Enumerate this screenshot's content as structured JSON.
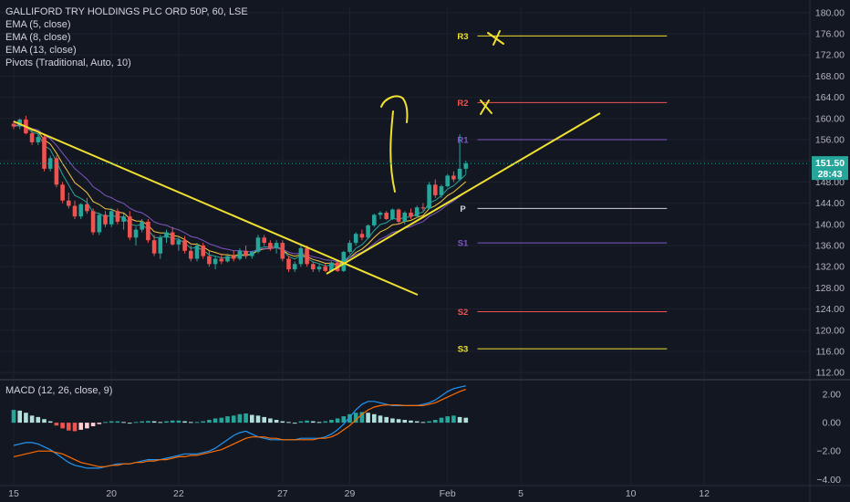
{
  "title": "GALLIFORD TRY HOLDINGS PLC ORD 50P, 60, LSE",
  "indicators": [
    "EMA (5, close)",
    "EMA (8, close)",
    "EMA (13, close)",
    "Pivots (Traditional, Auto, 10)"
  ],
  "colors": {
    "background": "#131722",
    "grid": "#1e222d",
    "up": "#26a69a",
    "down": "#ef5350",
    "ema5": "#26a69a",
    "ema8": "#f5c842",
    "ema13": "#7e57c2",
    "trendline": "#f0e130",
    "annotation": "#f0e130",
    "last_price_line": "#26a69a",
    "macd_line": "#2196f3",
    "signal_line": "#ff6d00"
  },
  "chart_data": [
    {
      "type": "candlestick",
      "name": "price",
      "y_axis": {
        "ticks": [
          112.0,
          116.0,
          120.0,
          124.0,
          128.0,
          132.0,
          136.0,
          140.0,
          144.0,
          148.0,
          152.0,
          156.0,
          160.0,
          164.0,
          168.0,
          172.0,
          176.0,
          180.0
        ],
        "ylim": [
          111.0,
          181.0
        ],
        "side": "right"
      },
      "x_axis": {
        "labels": [
          "15",
          "20",
          "22",
          "27",
          "29",
          "Feb",
          "5",
          "10",
          "12"
        ],
        "label_positions_index": [
          1,
          17,
          28,
          45,
          56,
          72,
          84,
          102,
          114
        ]
      },
      "last_price": {
        "value": "151.50",
        "countdown": "28:43"
      },
      "candles": [
        [
          159,
          159.5,
          158,
          158.5
        ],
        [
          158.5,
          160,
          158,
          159.8
        ],
        [
          159.8,
          160.5,
          157,
          157.2
        ],
        [
          157.2,
          158,
          155,
          155.5
        ],
        [
          155.5,
          157,
          155,
          156.5
        ],
        [
          156.5,
          157,
          150,
          150.5
        ],
        [
          150.5,
          153,
          150,
          152.5
        ],
        [
          152.5,
          153,
          147,
          147.5
        ],
        [
          147.5,
          148,
          144,
          144.5
        ],
        [
          144.5,
          146,
          143,
          143.5
        ],
        [
          143.5,
          144.5,
          141,
          141.5
        ],
        [
          141.5,
          144,
          141,
          143.8
        ],
        [
          143.8,
          145,
          142,
          142.5
        ],
        [
          142.5,
          143,
          138,
          138.5
        ],
        [
          138.5,
          142,
          138,
          141.8
        ],
        [
          141.8,
          142.5,
          139.5,
          140
        ],
        [
          140,
          143,
          139.5,
          142.5
        ],
        [
          142.5,
          143,
          140,
          140.5
        ],
        [
          140.5,
          142,
          139,
          141.5
        ],
        [
          141.5,
          142.5,
          137,
          137.5
        ],
        [
          137.5,
          139.5,
          136,
          139
        ],
        [
          139,
          141,
          138.5,
          140.5
        ],
        [
          140.5,
          141,
          136.5,
          137
        ],
        [
          137,
          138,
          134,
          134.5
        ],
        [
          134.5,
          138,
          133.5,
          137.5
        ],
        [
          137.5,
          139,
          136.5,
          138.5
        ],
        [
          138.5,
          139.5,
          136,
          136.2
        ],
        [
          136.2,
          137.5,
          135,
          137
        ],
        [
          137,
          137.8,
          134.5,
          135
        ],
        [
          135,
          136,
          133,
          133.5
        ],
        [
          133.5,
          136.5,
          133,
          136
        ],
        [
          136,
          136.5,
          133.5,
          134
        ],
        [
          134,
          135,
          132,
          132.5
        ],
        [
          132.5,
          134,
          131.5,
          133.5
        ],
        [
          133.5,
          134.5,
          132.5,
          133
        ],
        [
          133,
          134.5,
          132.8,
          134
        ],
        [
          134,
          135,
          133,
          133.5
        ],
        [
          133.5,
          135.5,
          133.2,
          135
        ],
        [
          135,
          136,
          133.5,
          134
        ],
        [
          134,
          135,
          133.5,
          134.8
        ],
        [
          134.8,
          138,
          134.5,
          137.5
        ],
        [
          137.5,
          138,
          136,
          136.5
        ],
        [
          136.5,
          137,
          135,
          135.5
        ],
        [
          135.5,
          137,
          134.5,
          136.5
        ],
        [
          136.5,
          137,
          133,
          133.5
        ],
        [
          133.5,
          134,
          131,
          131.5
        ],
        [
          131.5,
          133,
          131,
          132.5
        ],
        [
          132.5,
          136,
          132,
          135.5
        ],
        [
          135.5,
          136,
          132,
          132.5
        ],
        [
          132.5,
          133,
          131,
          131.5
        ],
        [
          131.5,
          132.5,
          131,
          132
        ],
        [
          132,
          132.5,
          131,
          131.2
        ],
        [
          131.2,
          133,
          131,
          132.8
        ],
        [
          132.8,
          133,
          131,
          131.2
        ],
        [
          131.2,
          135,
          131,
          134.8
        ],
        [
          134.8,
          137,
          134.5,
          136.5
        ],
        [
          136.5,
          138.5,
          136,
          138.2
        ],
        [
          138.2,
          139,
          137,
          137.5
        ],
        [
          137.5,
          140,
          137.2,
          139.8
        ],
        [
          139.8,
          142,
          139.5,
          141.8
        ],
        [
          141.8,
          142.5,
          141,
          142.2
        ],
        [
          142.2,
          142.5,
          140.8,
          141
        ],
        [
          141,
          143,
          140.8,
          142.8
        ],
        [
          142.8,
          143,
          140,
          140.5
        ],
        [
          140.5,
          142.5,
          140,
          142.2
        ],
        [
          142.2,
          143,
          141,
          141.5
        ],
        [
          141.5,
          143.5,
          141.2,
          143.2
        ],
        [
          143.2,
          144,
          142.5,
          143
        ],
        [
          143,
          148,
          142.8,
          147.5
        ],
        [
          147.5,
          148.5,
          145,
          145.5
        ],
        [
          145.5,
          147.5,
          145,
          147.2
        ],
        [
          147.2,
          149.5,
          147,
          149.2
        ],
        [
          149.2,
          150,
          148,
          148.5
        ],
        [
          148.5,
          157,
          148.2,
          150.5
        ],
        [
          150.5,
          152,
          149.5,
          151.5
        ]
      ],
      "candle_x_index": [
        1,
        2,
        3,
        4,
        5,
        6,
        7,
        8,
        9,
        10,
        11,
        12,
        13,
        14,
        15,
        16,
        17,
        18,
        19,
        20,
        21,
        22,
        23,
        24,
        25,
        26,
        27,
        28,
        29,
        30,
        31,
        32,
        33,
        34,
        35,
        36,
        37,
        38,
        39,
        40,
        41,
        42,
        43,
        44,
        45,
        46,
        47,
        48,
        49,
        50,
        51,
        52,
        53,
        54,
        55,
        56,
        57,
        58,
        59,
        60,
        61,
        62,
        63,
        64,
        65,
        66,
        67,
        68,
        69,
        70,
        71,
        72,
        73,
        74,
        75
      ],
      "pivots": [
        {
          "label": "R3",
          "value": 175.6,
          "color": "#f0e130"
        },
        {
          "label": "R2",
          "value": 163.0,
          "color": "#ef5350"
        },
        {
          "label": "R1",
          "value": 156.0,
          "color": "#7e57c2"
        },
        {
          "label": "P",
          "value": 143.0,
          "color": "#d1d4dc"
        },
        {
          "label": "S1",
          "value": 136.5,
          "color": "#7e57c2"
        },
        {
          "label": "S2",
          "value": 123.5,
          "color": "#ef5350"
        },
        {
          "label": "S3",
          "value": 116.5,
          "color": "#f0e130"
        }
      ],
      "pivot_x_index": [
        56,
        90
      ]
    },
    {
      "type": "macd",
      "name": "MACD (12, 26, close, 9)",
      "y_axis": {
        "ticks": [
          2.0,
          0.0,
          -2.0,
          -4.0
        ],
        "tick_labels": [
          "2.00",
          "0.00",
          "−2.00",
          "−4.00"
        ],
        "ylim": [
          -4.3,
          2.9
        ]
      },
      "histogram": [
        0.9,
        0.85,
        0.7,
        0.5,
        0.4,
        0.25,
        0.1,
        -0.2,
        -0.4,
        -0.55,
        -0.6,
        -0.5,
        -0.4,
        -0.25,
        -0.1,
        0.05,
        0.1,
        0.1,
        0.05,
        0,
        0.05,
        0.1,
        0.12,
        0.1,
        0.05,
        0.1,
        0.15,
        0.15,
        0.1,
        0.05,
        0.05,
        0.1,
        0.2,
        0.3,
        0.35,
        0.45,
        0.5,
        0.6,
        0.65,
        0.55,
        0.5,
        0.4,
        0.3,
        0.2,
        0.1,
        0.05,
        0,
        0.1,
        0.15,
        0.1,
        0.05,
        0.1,
        0.2,
        0.3,
        0.45,
        0.6,
        0.7,
        0.75,
        0.7,
        0.6,
        0.5,
        0.4,
        0.3,
        0.25,
        0.2,
        0.15,
        0.1,
        0.05,
        0.1,
        0.2,
        0.35,
        0.45,
        0.5,
        0.4,
        0.35
      ],
      "macd_line": [
        -1.6,
        -1.5,
        -1.4,
        -1.4,
        -1.5,
        -1.7,
        -1.9,
        -2.2,
        -2.5,
        -2.8,
        -3.0,
        -3.1,
        -3.2,
        -3.2,
        -3.2,
        -3.1,
        -3.0,
        -2.9,
        -2.9,
        -2.9,
        -2.8,
        -2.7,
        -2.6,
        -2.6,
        -2.6,
        -2.5,
        -2.4,
        -2.3,
        -2.2,
        -2.2,
        -2.2,
        -2.1,
        -2.0,
        -1.8,
        -1.5,
        -1.2,
        -0.9,
        -0.7,
        -0.6,
        -0.8,
        -1.0,
        -1.1,
        -1.2,
        -1.2,
        -1.2,
        -1.2,
        -1.2,
        -1.1,
        -1.1,
        -1.1,
        -1.1,
        -1.0,
        -0.8,
        -0.5,
        -0.1,
        0.4,
        0.9,
        1.3,
        1.5,
        1.5,
        1.4,
        1.3,
        1.2,
        1.2,
        1.2,
        1.2,
        1.2,
        1.3,
        1.4,
        1.6,
        1.9,
        2.2,
        2.4,
        2.5,
        2.6
      ],
      "signal_line": [
        -2.4,
        -2.3,
        -2.2,
        -2.1,
        -2.0,
        -2.0,
        -2.0,
        -2.1,
        -2.2,
        -2.4,
        -2.6,
        -2.8,
        -2.9,
        -3.0,
        -3.1,
        -3.1,
        -3.0,
        -3.0,
        -2.9,
        -2.9,
        -2.8,
        -2.8,
        -2.7,
        -2.7,
        -2.6,
        -2.6,
        -2.5,
        -2.4,
        -2.4,
        -2.3,
        -2.3,
        -2.2,
        -2.1,
        -2.0,
        -1.9,
        -1.7,
        -1.5,
        -1.3,
        -1.1,
        -1.0,
        -1.0,
        -1.0,
        -1.1,
        -1.1,
        -1.2,
        -1.2,
        -1.2,
        -1.2,
        -1.2,
        -1.2,
        -1.1,
        -1.1,
        -1.0,
        -0.8,
        -0.5,
        -0.2,
        0.2,
        0.6,
        0.9,
        1.1,
        1.2,
        1.25,
        1.25,
        1.25,
        1.2,
        1.2,
        1.2,
        1.2,
        1.3,
        1.4,
        1.6,
        1.8,
        2.0,
        2.2,
        2.35
      ]
    }
  ]
}
